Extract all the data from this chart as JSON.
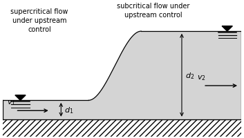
{
  "bg_color": "#d4d4d4",
  "text_supercritical": "supercritical flow\nunder upstream\ncontrol",
  "text_subcritical": "subcritical flow under\nupstream control",
  "label_d1": "$d_1$",
  "label_d2": "$d_2$",
  "label_v1": "$v_1$",
  "label_v2": "$v_2$",
  "xlim": [
    0,
    10
  ],
  "ylim": [
    0,
    5.8
  ],
  "y_bed_top": 0.75,
  "y_water_low": 1.55,
  "y_water_high": 4.5,
  "x_jump_start": 3.6,
  "x_jump_end": 5.8,
  "x_right_end": 10.0,
  "font_size_text": 7.0,
  "font_size_label": 8.0
}
